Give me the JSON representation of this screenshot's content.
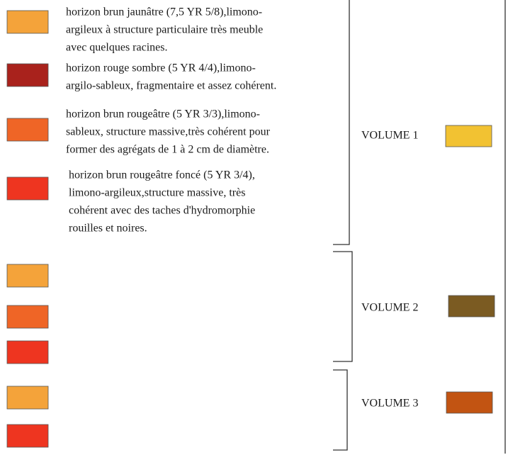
{
  "horizons": [
    {
      "color": "#f4a33a",
      "lines": [
        "horizon brun jaunâtre (7,5 YR 5/8),limono-",
        "argileux à structure particulaire très meuble",
        "avec quelques racines."
      ]
    },
    {
      "color": "#a9221c",
      "lines": [
        "horizon rouge sombre (5 YR 4/4),limono-",
        "argilo-sableux, fragmentaire et assez cohérent."
      ]
    },
    {
      "color": "#ef6526",
      "lines": [
        "horizon brun rougeâtre (5 YR 3/3),limono-",
        "sableux, structure massive,très cohérent pour",
        "former des agrégats de 1 à 2 cm de diamètre."
      ]
    },
    {
      "color": "#ee3520",
      "lines": [
        "horizon brun rougeâtre foncé (5 YR 3/4),",
        "limono-argileux,structure massive, très",
        "cohérent avec des taches d'hydromorphie",
        "rouilles et noires."
      ]
    },
    {
      "color": "#f4a33a"
    },
    {
      "color": "#ef6526"
    },
    {
      "color": "#ee3520"
    },
    {
      "color": "#f4a33a"
    },
    {
      "color": "#ee3520"
    }
  ],
  "volumes": [
    {
      "label": "VOLUME 1",
      "color": "#f2c232"
    },
    {
      "label": "VOLUME 2",
      "color": "#7b5b22"
    },
    {
      "label": "VOLUME 3",
      "color": "#c25412"
    }
  ]
}
